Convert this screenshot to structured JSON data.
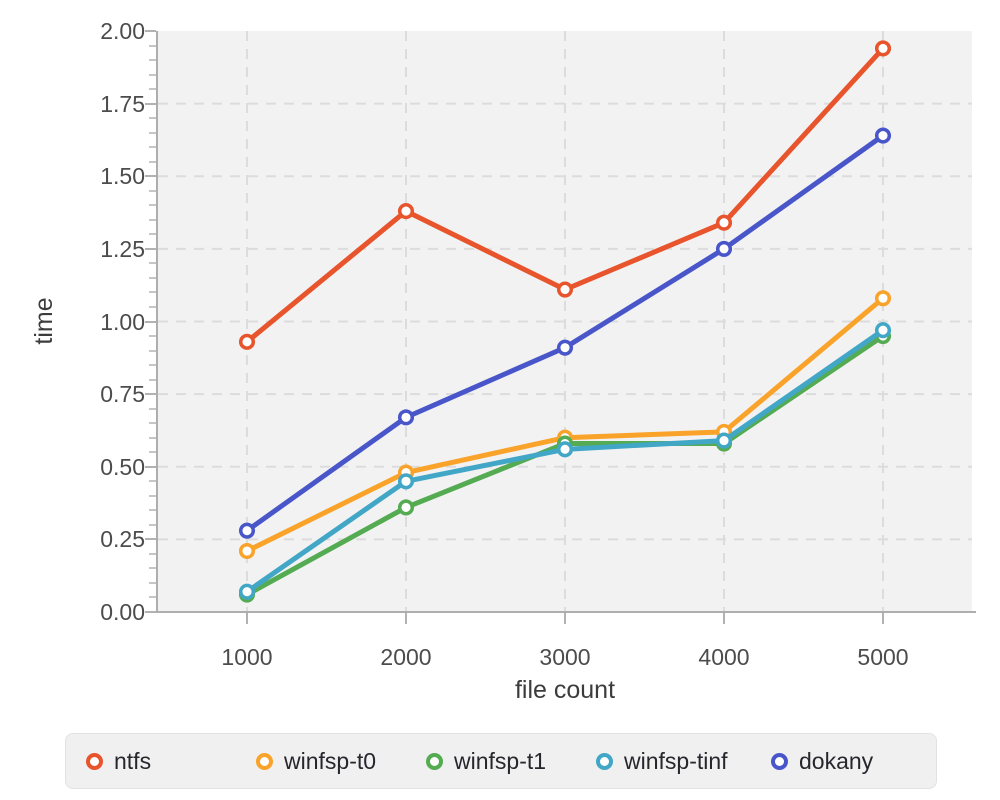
{
  "chart_data": {
    "type": "line",
    "title": "",
    "xlabel": "file count",
    "ylabel": "time",
    "x": [
      1000,
      2000,
      3000,
      4000,
      5000
    ],
    "xticks": [
      "1000",
      "2000",
      "3000",
      "4000",
      "5000"
    ],
    "ylim": [
      0,
      2.0
    ],
    "yticks": [
      "0.00",
      "0.25",
      "0.50",
      "0.75",
      "1.00",
      "1.25",
      "1.50",
      "1.75",
      "2.00"
    ],
    "y_minor_step": 0.05,
    "grid": "dashed",
    "plot_background": "#f2f2f3",
    "legend_position": "bottom",
    "series": [
      {
        "name": "ntfs",
        "color": "#e8542b",
        "values": [
          0.93,
          1.38,
          1.11,
          1.34,
          1.94
        ]
      },
      {
        "name": "winfsp-t0",
        "color": "#f9a32a",
        "values": [
          0.21,
          0.48,
          0.6,
          0.62,
          1.08
        ]
      },
      {
        "name": "winfsp-t1",
        "color": "#54ab52",
        "values": [
          0.06,
          0.36,
          0.58,
          0.58,
          0.95
        ]
      },
      {
        "name": "winfsp-tinf",
        "color": "#42a7c6",
        "values": [
          0.07,
          0.45,
          0.56,
          0.59,
          0.97
        ]
      },
      {
        "name": "dokany",
        "color": "#4956c9",
        "values": [
          0.28,
          0.67,
          0.91,
          1.25,
          1.64
        ]
      }
    ]
  }
}
